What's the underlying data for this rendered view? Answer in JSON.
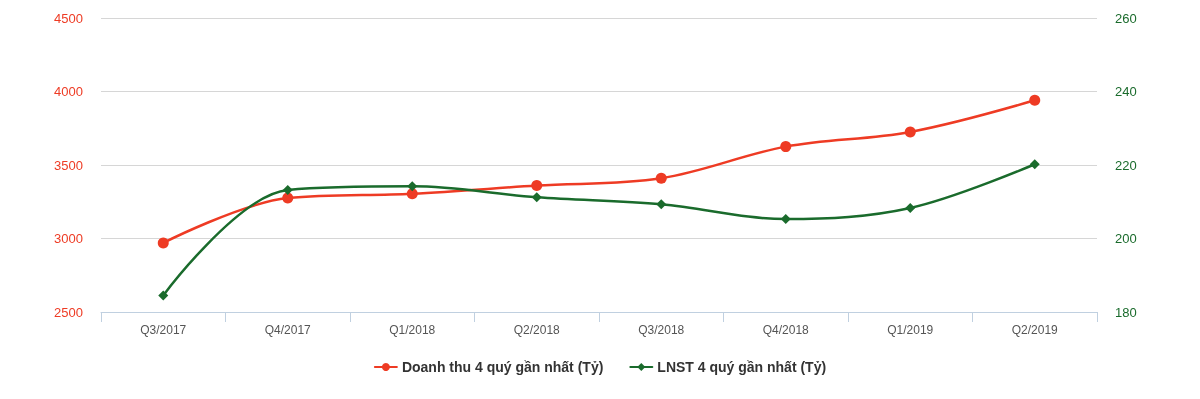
{
  "chart_data": {
    "type": "line",
    "categories": [
      "Q3/2017",
      "Q4/2017",
      "Q1/2018",
      "Q2/2018",
      "Q3/2018",
      "Q4/2018",
      "Q1/2019",
      "Q2/2019"
    ],
    "series": [
      {
        "name": "Doanh thu 4 quý gần nhất (Tỷ)",
        "color": "#ee3b24",
        "marker": "circle",
        "values": [
          2970,
          3275,
          3305,
          3360,
          3410,
          3625,
          3725,
          3940
        ]
      },
      {
        "name": "LNST 4 quý gần nhất (Tỷ)",
        "color": "#1a6b2c",
        "marker": "diamond",
        "axis": "y2",
        "values": [
          184.5,
          213.2,
          214.2,
          211.2,
          209.3,
          205.3,
          208.3,
          220.2
        ]
      }
    ],
    "ylim": [
      2500,
      4500
    ],
    "yticks": [
      2500,
      3000,
      3500,
      4000,
      4500
    ],
    "y2lim": [
      180,
      260
    ],
    "y2ticks": [
      180,
      200,
      220,
      240,
      260
    ],
    "grid": "y",
    "legend": "bottom",
    "line_style": "solid"
  }
}
